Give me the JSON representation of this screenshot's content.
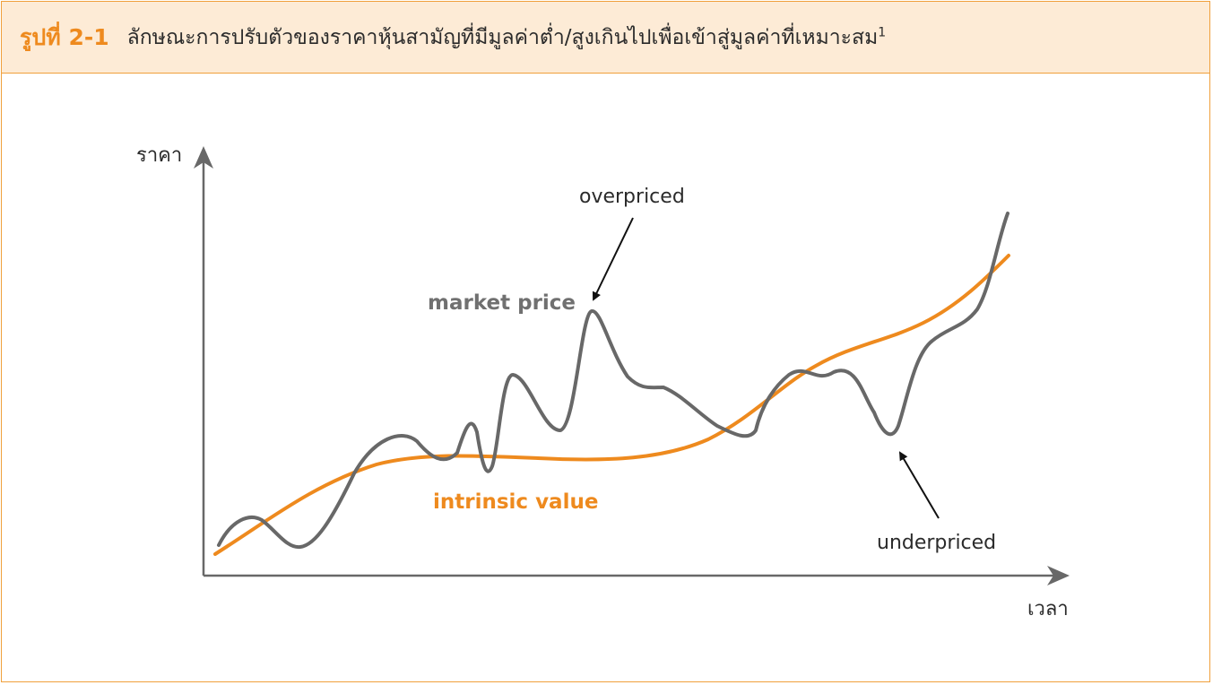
{
  "figure": {
    "number": "รูปที่ 2-1",
    "title": "ลักษณะการปรับตัวของราคาหุ้นสามัญที่มีมูลค่าต่ำ/สูงเกินไปเพื่อเข้าสู่มูลค่าที่เหมาะสม",
    "footnote_mark": "1"
  },
  "axes": {
    "y_label": "ราคา",
    "x_label": "เวลา"
  },
  "lines": {
    "market_price": {
      "label": "market price",
      "color": "#686868"
    },
    "intrinsic_value": {
      "label": "intrinsic value",
      "color": "#ee8a1e"
    }
  },
  "annotations": {
    "overpriced": "overpriced",
    "underpriced": "underpriced"
  },
  "colors": {
    "accent": "#ee8a1e",
    "header_bg": "#fdebd6",
    "border": "#f0a03c",
    "axis": "#686868"
  }
}
